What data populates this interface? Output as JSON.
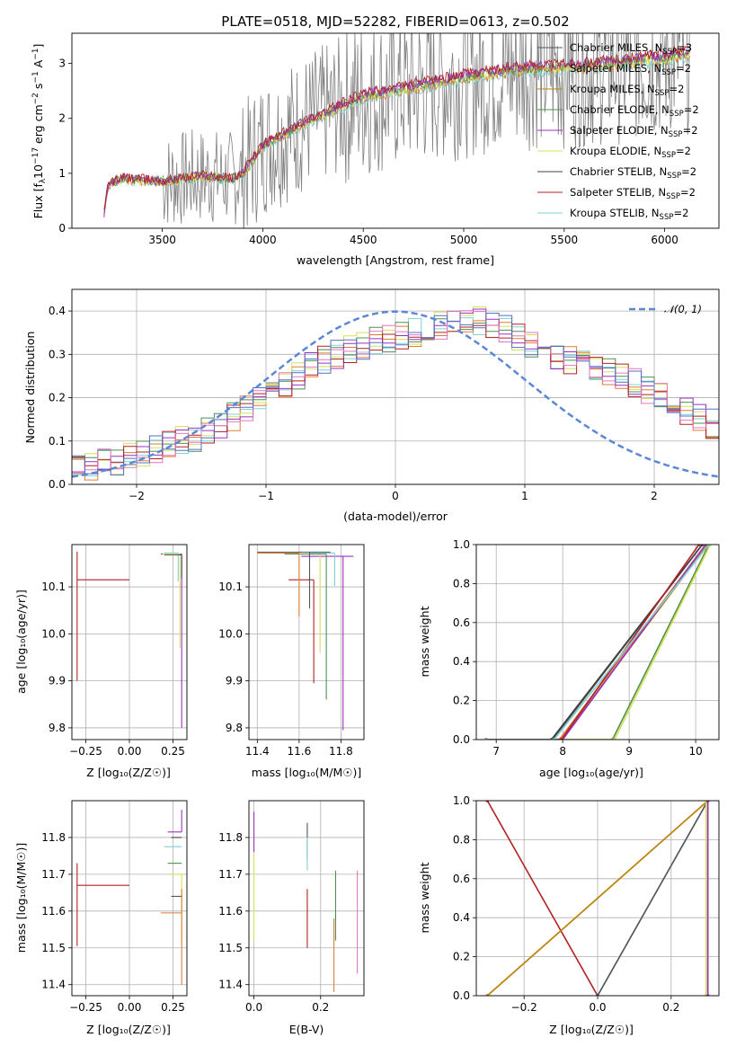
{
  "title": "PLATE=0518, MJD=52282, FIBERID=0613, z=0.502",
  "colors": {
    "Chabrier MILES": "#555555",
    "Salpeter MILES": "#e07b39",
    "Kroupa MILES": "#b8860b",
    "Chabrier ELODIE": "#4f8f4f",
    "Salpeter ELODIE": "#9b30c0",
    "Kroupa ELODIE": "#d4e157",
    "Chabrier STELIB": "#404040",
    "Salpeter STELIB": "#b22222",
    "Kroupa STELIB": "#7fd1d6",
    "data": "#808080",
    "normal": "#5b87d6",
    "pink": "#e377c2",
    "blue": "#5470c6"
  },
  "chart_data": [
    {
      "id": "spectrum",
      "type": "line",
      "title": "PLATE=0518, MJD=52282, FIBERID=0613, z=0.502",
      "xlabel": "wavelength [Angstrom, rest frame]",
      "ylabel_parts": {
        "a": "Flux [f",
        "sub": "λ",
        "b": "10",
        "sup1": "−17",
        "c": " erg cm",
        "sup2": "−2",
        "d": " s",
        "sup3": "−1",
        "e": " A",
        "sup4": "−1",
        "f": "]"
      },
      "xlim": [
        3050,
        6270
      ],
      "ylim": [
        0,
        3.55
      ],
      "xticks": [
        3500,
        4000,
        4500,
        5000,
        5500,
        6000
      ],
      "yticks": [
        0,
        1,
        2,
        3
      ],
      "legend_position": "upper right",
      "legend": [
        {
          "name": "Chabrier MILES, N",
          "sub": "SSP",
          "n": "=3"
        },
        {
          "name": "Salpeter MILES, N",
          "sub": "SSP",
          "n": "=2"
        },
        {
          "name": "Kroupa MILES, N",
          "sub": "SSP",
          "n": "=2"
        },
        {
          "name": "Chabrier ELODIE, N",
          "sub": "SSP",
          "n": "=2"
        },
        {
          "name": "Salpeter ELODIE, N",
          "sub": "SSP",
          "n": "=2"
        },
        {
          "name": "Kroupa ELODIE, N",
          "sub": "SSP",
          "n": "=2"
        },
        {
          "name": "Chabrier STELIB, N",
          "sub": "SSP",
          "n": "=2"
        },
        {
          "name": "Salpeter STELIB, N",
          "sub": "SSP",
          "n": "=2"
        },
        {
          "name": "Kroupa STELIB, N",
          "sub": "SSP",
          "n": "=2"
        }
      ],
      "trend": {
        "x": [
          3200,
          3230,
          3300,
          3500,
          3700,
          3850,
          3900,
          4000,
          4200,
          4500,
          4800,
          5000,
          5300,
          5600,
          6000,
          6130
        ],
        "y": [
          0.0,
          0.8,
          0.9,
          0.85,
          0.95,
          0.9,
          1.0,
          1.5,
          1.9,
          2.4,
          2.6,
          2.75,
          2.9,
          2.95,
          3.1,
          3.2
        ]
      }
    },
    {
      "id": "residuals",
      "type": "step",
      "xlabel": "(data-model)/error",
      "ylabel": "Normed distribution",
      "xlim": [
        -2.5,
        2.5
      ],
      "ylim": [
        0,
        0.45
      ],
      "xticks": [
        -2,
        -1,
        0,
        1,
        2
      ],
      "yticks": [
        0.0,
        0.1,
        0.2,
        0.3,
        0.4
      ],
      "legend": "𝒩(0, 1)",
      "legend_position": "upper right",
      "bin_start": -2.5,
      "bin_width": 0.1,
      "envelope": [
        0.04,
        0.045,
        0.05,
        0.055,
        0.06,
        0.07,
        0.08,
        0.09,
        0.1,
        0.11,
        0.125,
        0.14,
        0.155,
        0.175,
        0.19,
        0.21,
        0.23,
        0.25,
        0.27,
        0.29,
        0.3,
        0.31,
        0.32,
        0.33,
        0.34,
        0.345,
        0.35,
        0.36,
        0.37,
        0.375,
        0.38,
        0.375,
        0.365,
        0.355,
        0.34,
        0.325,
        0.31,
        0.3,
        0.29,
        0.28,
        0.27,
        0.26,
        0.25,
        0.235,
        0.22,
        0.2,
        0.185,
        0.17,
        0.155,
        0.14
      ]
    },
    {
      "id": "age_vs_Z",
      "type": "errorbar",
      "xlabel": "Z [log₁₀(Z/Z☉)]",
      "ylabel": "age  [log₁₀(age/yr)]",
      "xlim": [
        -0.33,
        0.33
      ],
      "ylim": [
        9.775,
        10.19
      ],
      "xticks": [
        -0.25,
        0.0,
        0.25
      ],
      "yticks": [
        9.8,
        9.9,
        10.0,
        10.1
      ],
      "points": [
        {
          "model": "Salpeter STELIB",
          "x": -0.3,
          "xerr_lo": 0.0,
          "xerr_hi": 0.3,
          "y": 10.115,
          "yerr_lo": 0.215,
          "yerr_hi": 0.06
        },
        {
          "model": "Salpeter ELODIE",
          "x": 0.3,
          "xerr_lo": 0.12,
          "xerr_hi": 0.0,
          "y": 10.17,
          "yerr_lo": 0.37,
          "yerr_hi": 0.0
        },
        {
          "model": "Kroupa ELODIE",
          "x": 0.29,
          "xerr_lo": 0.1,
          "xerr_hi": 0.0,
          "y": 10.17,
          "yerr_lo": 0.2,
          "yerr_hi": 0.0
        },
        {
          "model": "Kroupa STELIB",
          "x": 0.28,
          "xerr_lo": 0.08,
          "xerr_hi": 0.0,
          "y": 10.172,
          "yerr_lo": 0.06,
          "yerr_hi": 0.0
        },
        {
          "model": "Chabrier MILES",
          "x": 0.3,
          "xerr_lo": 0.1,
          "xerr_hi": 0.0,
          "y": 10.168,
          "yerr_lo": 0.05,
          "yerr_hi": 0.0
        }
      ]
    },
    {
      "id": "age_vs_mass",
      "type": "errorbar",
      "xlabel": "mass [log₁₀(M/M☉)]",
      "xlim": [
        11.36,
        11.91
      ],
      "ylim": [
        9.775,
        10.19
      ],
      "xticks": [
        11.4,
        11.6,
        11.8
      ],
      "yticks": [
        9.8,
        9.9,
        10.0,
        10.1
      ],
      "points": [
        {
          "model": "Salpeter STELIB",
          "x": 11.67,
          "xerr_lo": 0.12,
          "xerr_hi": 0.0,
          "y": 10.115,
          "yerr_lo": 0.22,
          "yerr_hi": 0.0
        },
        {
          "model": "Salpeter ELODIE",
          "x": 11.81,
          "xerr_lo": 0.2,
          "xerr_hi": 0.05,
          "y": 10.165,
          "yerr_lo": 0.37,
          "yerr_hi": 0.0
        },
        {
          "model": "Kroupa ELODIE",
          "x": 11.7,
          "xerr_lo": 0.15,
          "xerr_hi": 0.0,
          "y": 10.17,
          "yerr_lo": 0.21,
          "yerr_hi": 0.0
        },
        {
          "model": "Chabrier ELODIE",
          "x": 11.73,
          "xerr_lo": 0.2,
          "xerr_hi": 0.0,
          "y": 10.17,
          "yerr_lo": 0.31,
          "yerr_hi": 0.0
        },
        {
          "model": "Salpeter MILES",
          "x": 11.6,
          "xerr_lo": 0.2,
          "xerr_hi": 0.0,
          "y": 10.172,
          "yerr_lo": 0.135,
          "yerr_hi": 0.0
        },
        {
          "model": "Kroupa STELIB",
          "x": 11.77,
          "xerr_lo": 0.12,
          "xerr_hi": 0.0,
          "y": 10.172,
          "yerr_lo": 0.07,
          "yerr_hi": 0.0
        },
        {
          "model": "Chabrier MILES",
          "x": 11.65,
          "xerr_lo": 0.25,
          "xerr_hi": 0.1,
          "y": 10.174,
          "yerr_lo": 0.12,
          "yerr_hi": 0.0
        }
      ]
    },
    {
      "id": "cum_mass_age",
      "type": "line",
      "xlabel": "age  [log₁₀(age/yr)]",
      "ylabel": "mass weight",
      "xlim": [
        6.7,
        10.35
      ],
      "ylim": [
        0,
        1
      ],
      "xticks": [
        7,
        8,
        9,
        10
      ],
      "yticks": [
        0.0,
        0.2,
        0.4,
        0.6,
        0.8,
        1.0
      ],
      "series": [
        {
          "model": "Chabrier MILES",
          "x": [
            6.85,
            7.85,
            10.1
          ],
          "y": [
            0,
            0,
            1
          ]
        },
        {
          "model": "Salpeter MILES",
          "x": [
            6.85,
            7.95,
            10.15
          ],
          "y": [
            0,
            0,
            1
          ]
        },
        {
          "model": "Kroupa MILES",
          "x": [
            6.85,
            7.98,
            10.18
          ],
          "y": [
            0,
            0,
            1
          ]
        },
        {
          "model": "Chabrier ELODIE",
          "x": [
            6.85,
            8.75,
            10.2
          ],
          "y": [
            0,
            0,
            1
          ]
        },
        {
          "model": "Salpeter ELODIE",
          "x": [
            6.85,
            8.0,
            10.15
          ],
          "y": [
            0,
            0,
            1
          ]
        },
        {
          "model": "Kroupa ELODIE",
          "x": [
            6.85,
            8.78,
            10.22
          ],
          "y": [
            0,
            0,
            1
          ]
        },
        {
          "model": "Chabrier STELIB",
          "x": [
            6.85,
            7.83,
            10.1
          ],
          "y": [
            0,
            0,
            1
          ]
        },
        {
          "model": "Salpeter STELIB",
          "x": [
            6.85,
            7.98,
            10.05
          ],
          "y": [
            0,
            0,
            1
          ]
        },
        {
          "model": "Kroupa STELIB",
          "x": [
            6.85,
            7.87,
            10.2
          ],
          "y": [
            0,
            0,
            1
          ]
        }
      ]
    },
    {
      "id": "mass_vs_Z",
      "type": "errorbar",
      "xlabel": "Z [log₁₀(Z/Z☉)]",
      "ylabel": "mass [log₁₀(M/M☉)]",
      "xlim": [
        -0.33,
        0.33
      ],
      "ylim": [
        11.37,
        11.9
      ],
      "xticks": [
        -0.25,
        0.0,
        0.25
      ],
      "yticks": [
        11.4,
        11.5,
        11.6,
        11.7,
        11.8
      ],
      "points": [
        {
          "model": "Salpeter STELIB",
          "x": -0.3,
          "xerr_lo": 0.0,
          "xerr_hi": 0.3,
          "y": 11.67,
          "yerr_lo": 0.165,
          "yerr_hi": 0.06
        },
        {
          "model": "Salpeter ELODIE",
          "x": 0.3,
          "xerr_lo": 0.08,
          "xerr_hi": 0.0,
          "y": 11.815,
          "yerr_lo": 0.0,
          "yerr_hi": 0.06
        },
        {
          "model": "Chabrier STELIB",
          "x": 0.3,
          "xerr_lo": 0.06,
          "xerr_hi": 0.0,
          "y": 11.8,
          "yerr_lo": 0.0,
          "yerr_hi": 0.0
        },
        {
          "model": "Kroupa STELIB",
          "x": 0.3,
          "xerr_lo": 0.1,
          "xerr_hi": 0.0,
          "y": 11.775,
          "yerr_lo": 0.0,
          "yerr_hi": 0.0
        },
        {
          "model": "Chabrier ELODIE",
          "x": 0.3,
          "xerr_lo": 0.08,
          "xerr_hi": 0.0,
          "y": 11.73,
          "yerr_lo": 0.0,
          "yerr_hi": 0.0
        },
        {
          "model": "Kroupa ELODIE",
          "x": 0.3,
          "xerr_lo": 0.08,
          "xerr_hi": 0.0,
          "y": 11.7,
          "yerr_lo": 0.18,
          "yerr_hi": 0.0
        },
        {
          "model": "Salpeter MILES",
          "x": 0.3,
          "xerr_lo": 0.0,
          "xerr_hi": 0.0,
          "y": 11.6,
          "yerr_lo": 0.2,
          "yerr_hi": 0.06
        },
        {
          "model": "Salpeter MILES",
          "x": 0.3,
          "xerr_lo": 0.12,
          "xerr_hi": 0.0,
          "y": 11.595,
          "yerr_lo": 0.0,
          "yerr_hi": 0.0
        },
        {
          "model": "Chabrier MILES",
          "x": 0.3,
          "xerr_lo": 0.06,
          "xerr_hi": 0.0,
          "y": 11.64,
          "yerr_lo": 0.0,
          "yerr_hi": 0.0
        }
      ]
    },
    {
      "id": "mass_vs_ebv",
      "type": "errorbar",
      "xlabel": "E(B-V)",
      "xlim": [
        -0.015,
        0.33
      ],
      "ylim": [
        11.37,
        11.9
      ],
      "xticks": [
        0.0,
        0.2
      ],
      "yticks": [
        11.4,
        11.5,
        11.6,
        11.7,
        11.8
      ],
      "points": [
        {
          "model": "Salpeter ELODIE",
          "x": 0.0,
          "y": 11.8,
          "yerr_lo": 0.04,
          "yerr_hi": 0.07
        },
        {
          "model": "Kroupa ELODIE",
          "x": 0.0,
          "y": 11.64,
          "yerr_lo": 0.12,
          "yerr_hi": 0.12
        },
        {
          "model": "Chabrier MILES",
          "x": 0.16,
          "y": 11.8,
          "yerr_lo": 0.06,
          "yerr_hi": 0.04
        },
        {
          "model": "Kroupa STELIB",
          "x": 0.16,
          "y": 11.75,
          "yerr_lo": 0.04,
          "yerr_hi": 0.05
        },
        {
          "model": "Salpeter STELIB",
          "x": 0.16,
          "y": 11.58,
          "yerr_lo": 0.08,
          "yerr_hi": 0.08
        },
        {
          "model": "Chabrier ELODIE",
          "x": 0.245,
          "y": 11.64,
          "yerr_lo": 0.12,
          "yerr_hi": 0.07
        },
        {
          "model": "Salpeter MILES",
          "x": 0.24,
          "y": 11.48,
          "yerr_lo": 0.1,
          "yerr_hi": 0.1
        },
        {
          "model": "pink",
          "x": 0.31,
          "y": 11.57,
          "yerr_lo": 0.14,
          "yerr_hi": 0.14
        }
      ]
    },
    {
      "id": "cum_mass_Z",
      "type": "line",
      "xlabel": "Z [log₁₀(Z/Z☉)]",
      "ylabel": "mass weight",
      "xlim": [
        -0.33,
        0.33
      ],
      "ylim": [
        0,
        1
      ],
      "xticks": [
        -0.2,
        0.0,
        0.2
      ],
      "yticks": [
        0.0,
        0.2,
        0.4,
        0.6,
        0.8,
        1.0
      ],
      "series": [
        {
          "model": "Salpeter STELIB",
          "x": [
            -0.3,
            0.0
          ],
          "y": [
            1,
            0
          ]
        },
        {
          "model": "Salpeter MILES",
          "x": [
            -0.3,
            0.3
          ],
          "y": [
            0,
            1
          ]
        },
        {
          "model": "Kroupa MILES",
          "x": [
            -0.3,
            0.3
          ],
          "y": [
            0,
            1
          ]
        },
        {
          "model": "Kroupa STELIB",
          "x": [
            0.0,
            0.3
          ],
          "y": [
            0,
            1
          ]
        },
        {
          "model": "Chabrier MILES",
          "x": [
            0.0,
            0.3
          ],
          "y": [
            0,
            1
          ]
        },
        {
          "model": "Chabrier ELODIE",
          "x": [
            0.3,
            0.3
          ],
          "y": [
            0,
            1
          ]
        },
        {
          "model": "Kroupa ELODIE",
          "x": [
            0.295,
            0.295
          ],
          "y": [
            0,
            1
          ]
        },
        {
          "model": "Salpeter ELODIE",
          "x": [
            0.3,
            0.3
          ],
          "y": [
            0,
            1
          ]
        }
      ]
    }
  ]
}
